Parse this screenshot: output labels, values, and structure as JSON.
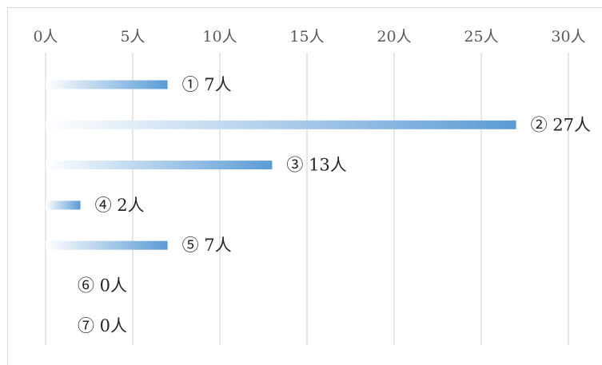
{
  "chart_data": {
    "type": "bar",
    "orientation": "horizontal",
    "categories": [
      "①",
      "②",
      "③",
      "④",
      "⑤",
      "⑥",
      "⑦"
    ],
    "values": [
      7,
      27,
      13,
      2,
      7,
      0,
      0
    ],
    "value_suffix": "人",
    "xlim": [
      0,
      30
    ],
    "x_ticks": [
      {
        "value": 0,
        "label": "0人"
      },
      {
        "value": 5,
        "label": "5人"
      },
      {
        "value": 10,
        "label": "10人"
      },
      {
        "value": 15,
        "label": "15人"
      },
      {
        "value": 20,
        "label": "20人"
      },
      {
        "value": 25,
        "label": "25人"
      },
      {
        "value": 30,
        "label": "30人"
      }
    ],
    "x_axis_position": "top",
    "grid": true,
    "legend": "none",
    "data_labels": [
      "① 7人",
      "② 27人",
      "③ 13人",
      "④ 2人",
      "⑤ 7人",
      "⑥ 0人",
      "⑦ 0人"
    ],
    "bar_color": "#5b9bd5",
    "bar_fill": "gradient-white-to-blue",
    "grid_color": "#d9d9d9"
  }
}
